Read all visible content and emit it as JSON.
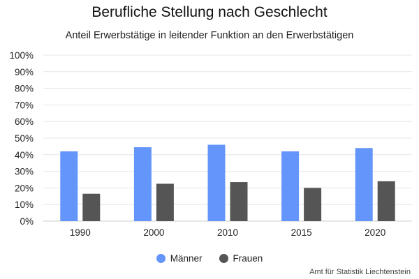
{
  "chart_data": {
    "type": "bar",
    "title": "Berufliche Stellung nach Geschlecht",
    "subtitle": "Anteil Erwerbstätige in leitender Funktion an den Erwerbstätigen",
    "categories": [
      "1990",
      "2000",
      "2010",
      "2015",
      "2020"
    ],
    "series": [
      {
        "name": "Männer",
        "color": "#6495fa",
        "values": [
          42,
          44.5,
          46,
          42,
          44
        ]
      },
      {
        "name": "Frauen",
        "color": "#555555",
        "values": [
          16.5,
          22.5,
          23.5,
          20,
          24
        ]
      }
    ],
    "y_ticks": [
      "0%",
      "10%",
      "20%",
      "30%",
      "40%",
      "50%",
      "60%",
      "70%",
      "80%",
      "90%",
      "100%"
    ],
    "ylim": [
      0,
      100
    ],
    "grid": true,
    "legend_position": "bottom",
    "source": "Amt für Statistik Liechtenstein"
  }
}
